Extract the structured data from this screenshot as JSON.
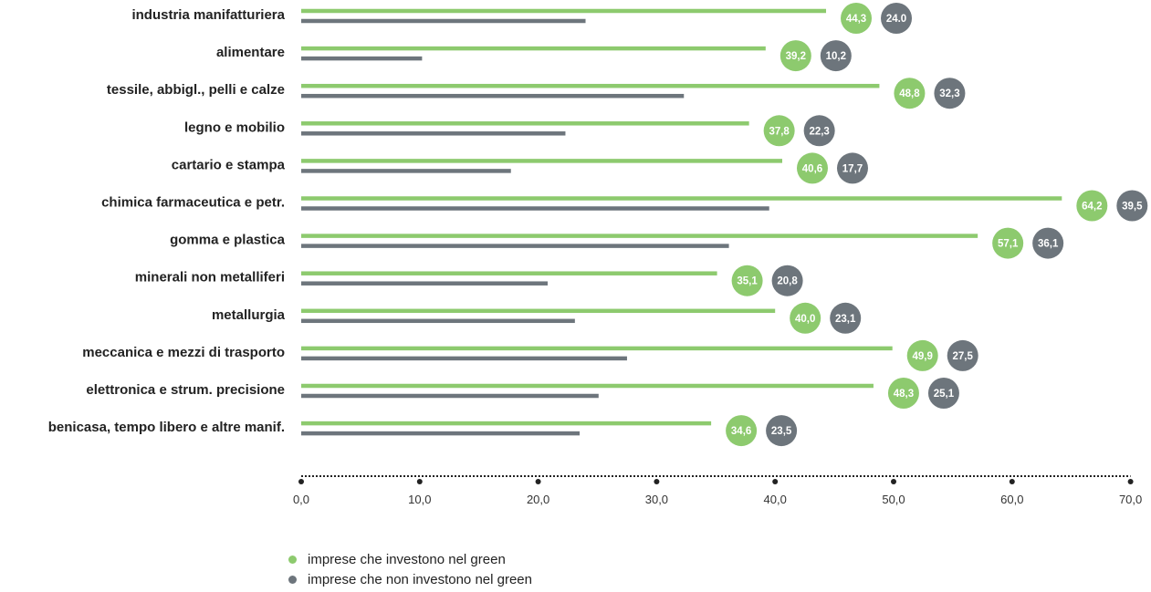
{
  "chart_data": {
    "type": "bar",
    "orientation": "horizontal",
    "categories": [
      "industria manifatturiera",
      "alimentare",
      "tessile, abbigl., pelli e calze",
      "legno e mobilio",
      "cartario e stampa",
      "chimica farmaceutica e petr.",
      "gomma e plastica",
      "minerali  non metalliferi",
      "metallurgia",
      "meccanica e mezzi di trasporto",
      "elettronica e strum. precisione",
      "benicasa, tempo libero e altre manif."
    ],
    "series": [
      {
        "name": "imprese che investono nel green",
        "color": "#8dca6e",
        "values": [
          44.3,
          39.2,
          48.8,
          37.8,
          40.6,
          64.2,
          57.1,
          35.1,
          40.0,
          49.9,
          48.3,
          34.6
        ],
        "labels": [
          "44,3",
          "39,2",
          "48,8",
          "37,8",
          "40,6",
          "64,2",
          "57,1",
          "35,1",
          "40,0",
          "49,9",
          "48,3",
          "34,6"
        ]
      },
      {
        "name": "imprese che non investono nel green",
        "color": "#6d757c",
        "values": [
          24.0,
          10.2,
          32.3,
          22.3,
          17.7,
          39.5,
          36.1,
          20.8,
          23.1,
          27.5,
          25.1,
          23.5
        ],
        "labels": [
          "24.0",
          "10,2",
          "32,3",
          "22,3",
          "17,7",
          "39,5",
          "36,1",
          "20,8",
          "23,1",
          "27,5",
          "25,1",
          "23,5"
        ]
      }
    ],
    "xlim": [
      0,
      70
    ],
    "xticks": [
      0,
      10,
      20,
      30,
      40,
      50,
      60,
      70
    ],
    "xtick_labels": [
      "0,0",
      "10,0",
      "20,0",
      "30,0",
      "40,0",
      "50,0",
      "60,0",
      "70,0"
    ],
    "title": "",
    "xlabel": "",
    "ylabel": "",
    "grid": false,
    "legend_position": "bottom-left"
  }
}
